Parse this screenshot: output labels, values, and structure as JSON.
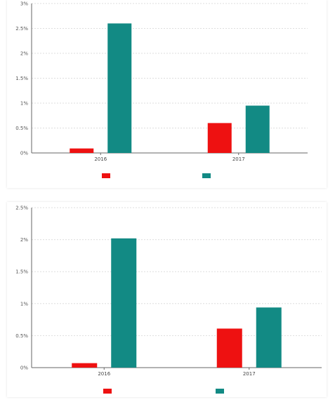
{
  "colors": {
    "series_a": "#ee1111",
    "series_b": "#128a84"
  },
  "caption": "",
  "chart_data": [
    {
      "type": "bar",
      "title": "",
      "xlabel": "",
      "ylabel": "",
      "categories": [
        "2016",
        "2017"
      ],
      "ylim": [
        0,
        3
      ],
      "yticks": [
        "0%",
        "0.5%",
        "1%",
        "1.5%",
        "2%",
        "2.5%",
        "3%"
      ],
      "ytick_values": [
        0,
        0.5,
        1,
        1.5,
        2,
        2.5,
        3
      ],
      "grid": true,
      "legend_position": "bottom",
      "series": [
        {
          "name": "",
          "values": [
            0.09,
            0.6
          ]
        },
        {
          "name": "",
          "values": [
            2.6,
            0.95
          ]
        }
      ]
    },
    {
      "type": "bar",
      "title": "",
      "xlabel": "",
      "ylabel": "",
      "categories": [
        "2016",
        "2017"
      ],
      "ylim": [
        0,
        2.5
      ],
      "yticks": [
        "0%",
        "0.5%",
        "1%",
        "1.5%",
        "2%",
        "2.5%"
      ],
      "ytick_values": [
        0,
        0.5,
        1,
        1.5,
        2,
        2.5
      ],
      "grid": true,
      "legend_position": "bottom",
      "series": [
        {
          "name": "",
          "values": [
            0.07,
            0.61
          ]
        },
        {
          "name": "",
          "values": [
            2.02,
            0.94
          ]
        }
      ]
    }
  ]
}
